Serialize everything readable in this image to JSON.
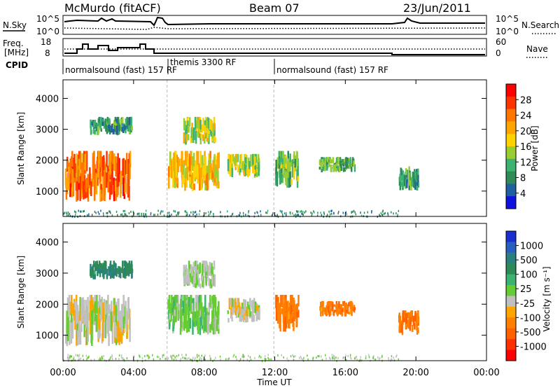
{
  "header": {
    "station": "McMurdo (fitACF)",
    "beam": "Beam 07",
    "date": "23/Jun/2011"
  },
  "params": {
    "nsky_label": "N.Sky",
    "nsky_ticks": [
      "10^5",
      "10^0"
    ],
    "nsearch_label": "N.Search",
    "nsearch_ticks": [
      "10^5",
      "10^0"
    ],
    "freq_label": "Freq.",
    "freq_unit": "[MHz]",
    "freq_ticks": [
      "18",
      "8"
    ],
    "nave_label": "Nave",
    "nave_ticks": [
      "60",
      "0"
    ],
    "cpid_label": "CPID",
    "modes": [
      {
        "label": "normalsound (fast) 157 RF",
        "start_h": 0,
        "end_h": 5.9
      },
      {
        "label": "themis 3300 RF",
        "start_h": 5.9,
        "end_h": 11.95
      },
      {
        "label": "normalsound (fast) 157 RF",
        "start_h": 11.95,
        "end_h": 24
      }
    ]
  },
  "panels": {
    "power": {
      "ylabel": "Slant Range [km]",
      "yticks": [
        "4000",
        "3000",
        "2000",
        "1000"
      ],
      "colorbar_label": "Power [dB]",
      "colorbar_ticks": [
        "28",
        "24",
        "20",
        "16",
        "12",
        "8",
        "4"
      ],
      "colors": [
        "#ff0000",
        "#ff3300",
        "#ff7700",
        "#ffa500",
        "#ffd200",
        "#9acd32",
        "#3cb371",
        "#2e8b57",
        "#2060a0",
        "#1010e0"
      ]
    },
    "velocity": {
      "ylabel": "Slant Range [km]",
      "yticks": [
        "4000",
        "3000",
        "2000",
        "1000"
      ],
      "colorbar_label": "Velocity [m s⁻¹]",
      "colorbar_ticks": [
        "1000",
        "500",
        "100",
        "25",
        "-25",
        "-100",
        "-500",
        "-1000"
      ],
      "colors": [
        "#1a2fcf",
        "#2a5fbf",
        "#2a7f7f",
        "#2e8b57",
        "#3cb371",
        "#66cc33",
        "#c0c0c0",
        "#ffa500",
        "#ff7f00",
        "#ff6000",
        "#ff3000",
        "#ff0000"
      ]
    }
  },
  "xaxis": {
    "label": "Time UT",
    "ticks": [
      "00:00",
      "04:00",
      "08:00",
      "12:00",
      "16:00",
      "20:00",
      "00:00"
    ]
  },
  "chart_data": {
    "type": "heatmap",
    "title": "McMurdo (fitACF) Beam 07 23/Jun/2011",
    "xlabel": "Time UT",
    "ylabel": "Slant Range [km]",
    "xlim": [
      0,
      24
    ],
    "ylim": [
      180,
      4600
    ],
    "series": [
      {
        "name": "Power [dB]",
        "zlim": [
          0,
          30
        ]
      },
      {
        "name": "Velocity [m s⁻¹]",
        "zlim": [
          -1000,
          1000
        ]
      }
    ],
    "echo_regions": [
      {
        "t0": 0.1,
        "t1": 3.8,
        "r0": 650,
        "r1": 2300,
        "power": 24,
        "velocity": -100
      },
      {
        "t0": 1.5,
        "t1": 3.9,
        "r0": 2800,
        "r1": 3400,
        "power": 8,
        "velocity": 500
      },
      {
        "t0": 5.9,
        "t1": 8.8,
        "r0": 1000,
        "r1": 2300,
        "power": 18,
        "velocity": 100
      },
      {
        "t0": 6.8,
        "t1": 8.6,
        "r0": 2500,
        "r1": 3400,
        "power": 14,
        "velocity": -25
      },
      {
        "t0": 9.3,
        "t1": 11.1,
        "r0": 1400,
        "r1": 2200,
        "power": 14,
        "velocity": -100
      },
      {
        "t0": 12.0,
        "t1": 13.3,
        "r0": 1100,
        "r1": 2300,
        "power": 12,
        "velocity": -500
      },
      {
        "t0": 14.5,
        "t1": 16.5,
        "r0": 1600,
        "r1": 2100,
        "power": 10,
        "velocity": -500
      },
      {
        "t0": 19.0,
        "t1": 20.1,
        "r0": 1000,
        "r1": 1800,
        "power": 8,
        "velocity": -500
      }
    ]
  }
}
